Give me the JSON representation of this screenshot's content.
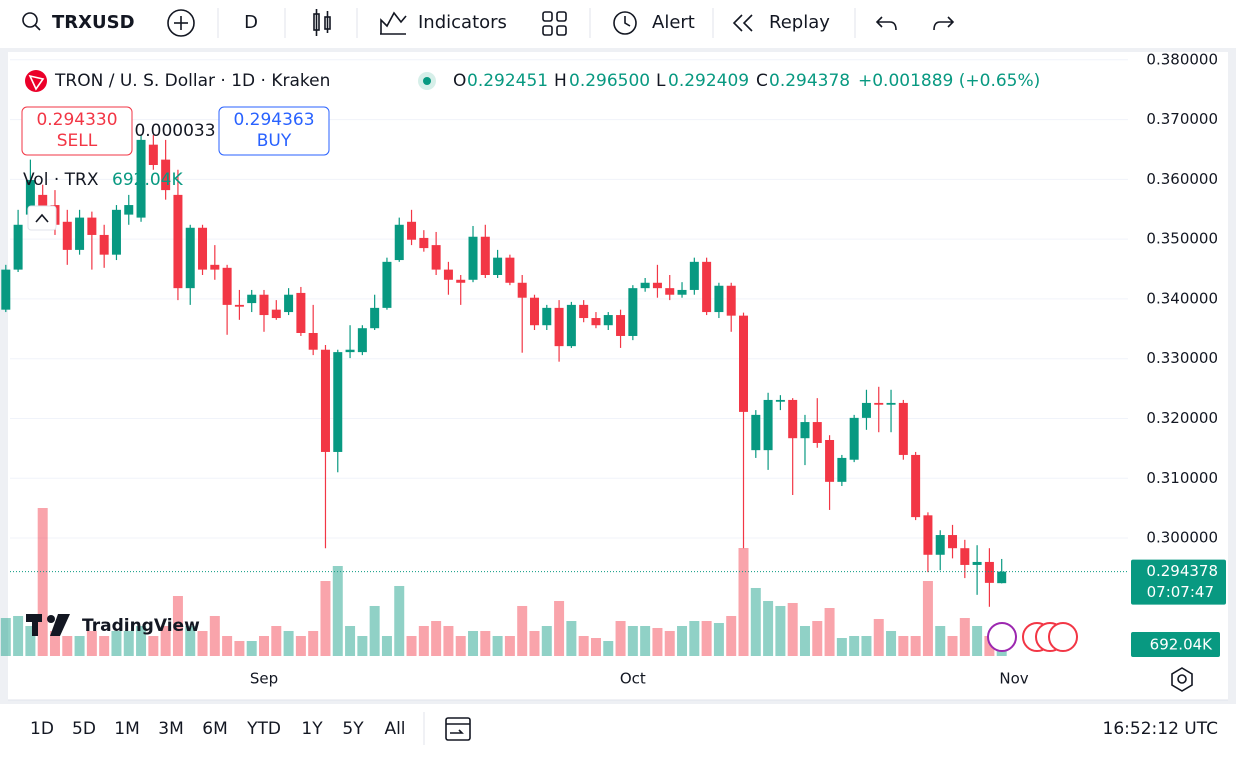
{
  "toolbar": {
    "symbol": "TRXUSD",
    "interval": "D",
    "indicators": "Indicators",
    "alert": "Alert",
    "replay": "Replay"
  },
  "header": {
    "title": "TRON / U. S. Dollar · 1D · Kraken",
    "open_key": "O",
    "open": "0.292451",
    "high_key": "H",
    "high": "0.296500",
    "low_key": "L",
    "low": "0.292409",
    "close_key": "C",
    "close": "0.294378",
    "change": "+0.001889 (+0.65%)"
  },
  "trade": {
    "sell_price": "0.294330",
    "sell": "SELL",
    "spread": "0.000033",
    "buy_price": "0.294363",
    "buy": "BUY"
  },
  "volume_legend": {
    "name": "Vol · TRX"
  },
  "watermark": "TradingView",
  "footer": {
    "ranges": [
      "1D",
      "5D",
      "1M",
      "3M",
      "6M",
      "YTD",
      "1Y",
      "5Y",
      "All"
    ],
    "clock": "16:52:12 UTC"
  },
  "chart_data": {
    "type": "candlestick",
    "categories": [
      null,
      null,
      null,
      null,
      null,
      null,
      null,
      null,
      null,
      null,
      null,
      null,
      null,
      null,
      null,
      null,
      null,
      null,
      null,
      null,
      null,
      "Sep",
      null,
      null,
      null,
      null,
      null,
      null,
      null,
      null,
      null,
      null,
      null,
      null,
      null,
      null,
      null,
      null,
      null,
      null,
      null,
      null,
      null,
      null,
      null,
      null,
      null,
      null,
      null,
      null,
      null,
      "Oct",
      null,
      null,
      null,
      null,
      null,
      null,
      null,
      null,
      null,
      null,
      null,
      null,
      null,
      null,
      null,
      null,
      null,
      null,
      null,
      null,
      null,
      null,
      null,
      null,
      null,
      null,
      null,
      null,
      null,
      null,
      "Nov"
    ],
    "open": [
      0.3382,
      0.3449,
      0.3541,
      0.3574,
      0.3557,
      0.3529,
      0.3482,
      0.3536,
      0.3507,
      0.3474,
      0.3541,
      0.3536,
      0.3658,
      0.3633,
      0.3574,
      0.3418,
      0.3519,
      0.3457,
      0.3452,
      0.339,
      0.3393,
      0.3407,
      0.3382,
      0.3378,
      0.341,
      0.3343,
      0.3315,
      0.3144,
      0.3311,
      0.3311,
      0.3351,
      0.3385,
      0.3465,
      0.3529,
      0.3502,
      0.349,
      0.3449,
      0.3432,
      0.3432,
      0.3504,
      0.344,
      0.3469,
      0.3427,
      0.3402,
      0.3356,
      0.3385,
      0.3321,
      0.339,
      0.3368,
      0.3356,
      0.3373,
      0.3338,
      0.3418,
      0.3427,
      0.3418,
      0.3407,
      0.3415,
      0.3462,
      0.3378,
      0.3422,
      0.3372,
      0.3147,
      0.3147,
      0.3228,
      0.3231,
      0.3167,
      0.3194,
      0.3164,
      0.3094,
      0.3131,
      0.3201,
      0.3226,
      0.3223,
      0.3226,
      0.3139,
      0.3038,
      0.2972,
      0.3005,
      0.2983,
      0.2955,
      0.296,
      0.292451,
      null
    ],
    "high": [
      0.3457,
      0.3549,
      0.3633,
      0.3591,
      0.3582,
      0.3549,
      0.3549,
      0.3546,
      0.3524,
      0.3557,
      0.3574,
      0.3674,
      0.3674,
      0.3666,
      0.3616,
      0.3524,
      0.3524,
      0.349,
      0.3457,
      0.3415,
      0.3415,
      0.3415,
      0.3398,
      0.3418,
      0.342,
      0.339,
      0.3323,
      0.3315,
      0.3356,
      0.3356,
      0.3407,
      0.3469,
      0.3536,
      0.3549,
      0.3515,
      0.3512,
      0.3462,
      0.344,
      0.3522,
      0.3524,
      0.3482,
      0.3474,
      0.344,
      0.3407,
      0.339,
      0.3398,
      0.3395,
      0.3398,
      0.3378,
      0.3378,
      0.3382,
      0.3423,
      0.3435,
      0.3457,
      0.344,
      0.3428,
      0.3469,
      0.3469,
      0.3427,
      0.3427,
      0.3377,
      0.3214,
      0.3243,
      0.3239,
      0.3234,
      0.3206,
      0.3234,
      0.3172,
      0.3139,
      0.3206,
      0.3248,
      0.3253,
      0.3248,
      0.3231,
      0.3144,
      0.3043,
      0.3013,
      0.3022,
      0.2997,
      0.2988,
      0.2983,
      0.2965,
      null
    ],
    "low": [
      0.3378,
      0.3445,
      0.3524,
      0.3515,
      0.3507,
      0.3457,
      0.3474,
      0.3449,
      0.3452,
      0.3465,
      0.3524,
      0.3529,
      0.3616,
      0.3566,
      0.3398,
      0.339,
      0.344,
      0.3432,
      0.334,
      0.3365,
      0.3378,
      0.3345,
      0.3365,
      0.3373,
      0.3338,
      0.3306,
      0.2983,
      0.311,
      0.3301,
      0.3306,
      0.3348,
      0.3382,
      0.3462,
      0.349,
      0.3479,
      0.344,
      0.3407,
      0.339,
      0.3428,
      0.3435,
      0.3435,
      0.3423,
      0.331,
      0.3348,
      0.3348,
      0.3295,
      0.3318,
      0.3361,
      0.3351,
      0.3348,
      0.3318,
      0.3331,
      0.3412,
      0.3402,
      0.3398,
      0.3402,
      0.3407,
      0.3373,
      0.3368,
      0.3345,
      0.2983,
      0.3134,
      0.3114,
      0.3214,
      0.3072,
      0.3122,
      0.3151,
      0.3047,
      0.3087,
      0.3127,
      0.3181,
      0.3177,
      0.3177,
      0.3131,
      0.303,
      0.2943,
      0.2946,
      0.2966,
      0.2933,
      0.2905,
      0.2885,
      0.292409,
      null
    ],
    "close": [
      0.3449,
      0.3524,
      0.3599,
      0.3532,
      0.3524,
      0.3482,
      0.3536,
      0.3507,
      0.3474,
      0.3549,
      0.3557,
      0.3666,
      0.3624,
      0.3582,
      0.3418,
      0.3519,
      0.3449,
      0.3449,
      0.339,
      0.3387,
      0.3407,
      0.3373,
      0.3368,
      0.3407,
      0.3343,
      0.3315,
      0.3144,
      0.3311,
      0.3315,
      0.3351,
      0.3385,
      0.3462,
      0.3524,
      0.3499,
      0.3485,
      0.3449,
      0.3432,
      0.3427,
      0.3504,
      0.344,
      0.3469,
      0.3427,
      0.3402,
      0.3356,
      0.3385,
      0.3321,
      0.339,
      0.3368,
      0.3356,
      0.3373,
      0.3338,
      0.3418,
      0.3427,
      0.3418,
      0.3407,
      0.3415,
      0.3462,
      0.3378,
      0.3422,
      0.3372,
      0.3211,
      0.3206,
      0.3231,
      0.3231,
      0.3167,
      0.3194,
      0.3159,
      0.3094,
      0.3134,
      0.3201,
      0.3226,
      0.3223,
      0.3226,
      0.3139,
      0.3035,
      0.2972,
      0.3005,
      0.2983,
      0.2955,
      0.296,
      0.2925,
      0.294378,
      null
    ],
    "volume": [
      2191000,
      2307000,
      1730000,
      8535000,
      1442000,
      1153000,
      1153000,
      1442000,
      1153000,
      1442000,
      1442000,
      1730000,
      1153000,
      1730000,
      3460000,
      1730000,
      1442000,
      2307000,
      1153000,
      865000,
      865000,
      1153000,
      1730000,
      1442000,
      1153000,
      1442000,
      4325000,
      5190000,
      1730000,
      1153000,
      2884000,
      1153000,
      4037000,
      1153000,
      1730000,
      2018000,
      1730000,
      1153000,
      1442000,
      1442000,
      1153000,
      1153000,
      2884000,
      1442000,
      1730000,
      3172000,
      2018000,
      1153000,
      1038000,
      865000,
      2018000,
      1730000,
      1730000,
      1615000,
      1442000,
      1730000,
      2018000,
      2018000,
      1903000,
      2307000,
      6228000,
      3922000,
      3172000,
      2884000,
      3057000,
      1730000,
      2018000,
      2768000,
      1038000,
      1153000,
      1153000,
      2134000,
      1442000,
      1153000,
      1153000,
      4325000,
      1730000,
      1153000,
      2191000,
      1730000,
      1153000,
      692040,
      null
    ],
    "volume_label": "692.04K",
    "countdown": "07:07:47",
    "ylim": [
      0.2801,
      0.3808
    ],
    "yticks": [
      {
        "value": 0.3,
        "label": "0.300000"
      },
      {
        "value": 0.31,
        "label": "0.310000"
      },
      {
        "value": 0.32,
        "label": "0.320000"
      },
      {
        "value": 0.33,
        "label": "0.330000"
      },
      {
        "value": 0.34,
        "label": "0.340000"
      },
      {
        "value": 0.35,
        "label": "0.350000"
      },
      {
        "value": 0.36,
        "label": "0.360000"
      },
      {
        "value": 0.37,
        "label": "0.370000"
      },
      {
        "value": 0.38,
        "label": "0.380000"
      }
    ],
    "grid": true,
    "up_color": "#089981",
    "down_color": "#f23645"
  }
}
